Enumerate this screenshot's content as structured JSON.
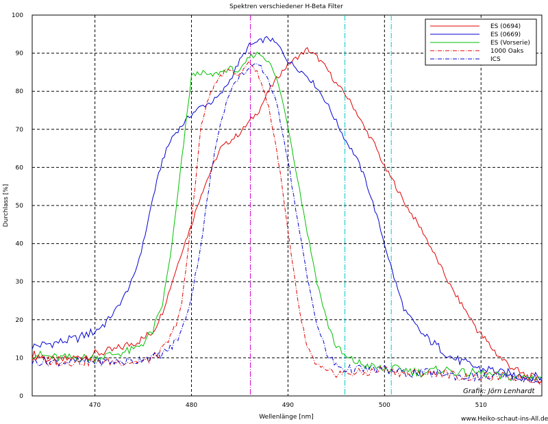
{
  "chart_data": {
    "type": "line",
    "title": "Spektren verschiedener H-Beta Filter",
    "xlabel": "Wellenlänge [nm]",
    "ylabel": "Durchlass [%]",
    "xlim": [
      463.5,
      516.3
    ],
    "ylim": [
      0,
      100
    ],
    "x_ticks": [
      470,
      480,
      490,
      500,
      510
    ],
    "y_ticks": [
      0,
      10,
      20,
      30,
      40,
      50,
      60,
      70,
      80,
      90,
      100
    ],
    "grid": true,
    "legend_position": "top-right",
    "series": [
      {
        "name": "ES (0694)",
        "color": "#e00000",
        "style": "solid",
        "x": [
          463.5,
          466,
          468,
          470,
          472,
          474,
          475,
          476,
          477,
          478,
          479,
          480,
          481,
          482,
          483,
          484,
          485,
          486,
          487,
          488,
          489,
          490,
          491,
          492,
          493,
          494,
          495,
          496,
          497,
          498,
          499,
          500,
          501,
          502,
          503,
          504,
          505,
          506,
          507,
          508,
          509,
          510,
          511,
          512,
          513,
          514,
          515,
          516.3
        ],
        "y": [
          11,
          9,
          10,
          11,
          12,
          14,
          15,
          17,
          22,
          30,
          38,
          45,
          53,
          59,
          65,
          67,
          69,
          72,
          75,
          80,
          84,
          87,
          89,
          91,
          89,
          86,
          82,
          79,
          75,
          70,
          66,
          60,
          56,
          51,
          47,
          43,
          38,
          33,
          28,
          24,
          20,
          16,
          13,
          10,
          8,
          6,
          5,
          4
        ]
      },
      {
        "name": "ES (0669)",
        "color": "#0000d0",
        "style": "solid",
        "x": [
          463.5,
          466,
          468,
          470,
          471,
          472,
          473,
          474,
          475,
          476,
          477,
          478,
          479,
          480,
          481,
          482,
          483,
          484,
          485,
          486,
          487,
          488,
          489,
          490,
          491,
          492,
          493,
          494,
          495,
          496,
          497,
          498,
          499,
          500,
          501,
          502,
          503,
          504,
          505,
          506,
          507,
          508,
          509,
          510,
          511,
          512,
          513,
          514,
          515,
          516.3
        ],
        "y": [
          13,
          14,
          15,
          17,
          19,
          22,
          26,
          31,
          40,
          52,
          62,
          68,
          71,
          74,
          76,
          77,
          79,
          83,
          88,
          92,
          93,
          94,
          92,
          88,
          86,
          84,
          81,
          77,
          72,
          67,
          63,
          57,
          49,
          40,
          31,
          23,
          19,
          16,
          14,
          12,
          10,
          9,
          8,
          7,
          7,
          6,
          6,
          5,
          5,
          5
        ]
      },
      {
        "name": "ES (Vorserie)",
        "color": "#00c000",
        "style": "solid",
        "x": [
          463.5,
          466,
          468,
          470,
          472,
          474,
          475,
          476,
          477,
          478,
          479,
          480,
          481,
          482,
          483,
          484,
          485,
          486,
          487,
          488,
          489,
          490,
          491,
          492,
          493,
          494,
          495,
          496,
          497,
          498,
          500,
          502,
          504,
          506,
          508,
          510,
          512,
          514,
          516.3
        ],
        "y": [
          11,
          10,
          10,
          10,
          11,
          12,
          14,
          17,
          24,
          40,
          62,
          84,
          85,
          84,
          85,
          86,
          85,
          89,
          90,
          88,
          82,
          71,
          57,
          43,
          30,
          20,
          13,
          10,
          9,
          8,
          7,
          7,
          6,
          7,
          6,
          6,
          5,
          5,
          5
        ]
      },
      {
        "name": "1000 Oaks",
        "color": "#e00000",
        "style": "dashdot",
        "x": [
          463.5,
          466,
          468,
          470,
          472,
          474,
          475,
          476,
          477,
          478,
          479,
          480,
          481,
          482,
          483,
          484,
          485,
          486,
          487,
          488,
          489,
          490,
          491,
          492,
          493,
          494,
          495,
          496,
          498,
          500,
          502,
          504,
          506,
          508,
          510,
          512,
          514,
          516.3
        ],
        "y": [
          10,
          9,
          9,
          9,
          9,
          9,
          9,
          10,
          12,
          16,
          24,
          46,
          71,
          80,
          84,
          86,
          84,
          88,
          84,
          76,
          62,
          43,
          25,
          12,
          8,
          6,
          6,
          6,
          6,
          7,
          6,
          6,
          6,
          5,
          5,
          5,
          5,
          4
        ]
      },
      {
        "name": "ICS",
        "color": "#0000d0",
        "style": "dashdot",
        "x": [
          463.5,
          466,
          468,
          470,
          472,
          474,
          475,
          476,
          477,
          478,
          479,
          480,
          481,
          482,
          483,
          484,
          485,
          486,
          487,
          488,
          489,
          490,
          491,
          492,
          493,
          494,
          495,
          496,
          497,
          498,
          500,
          502,
          504,
          506,
          508,
          510,
          512,
          514,
          516.3
        ],
        "y": [
          9,
          9,
          9,
          9,
          9,
          9,
          10,
          10,
          11,
          13,
          17,
          26,
          40,
          58,
          72,
          80,
          84,
          86,
          87,
          83,
          75,
          62,
          46,
          31,
          19,
          11,
          8,
          7,
          7,
          7,
          7,
          6,
          6,
          6,
          5,
          5,
          5,
          5,
          4
        ]
      }
    ],
    "reference_lines": [
      {
        "x": 486.1,
        "color": "#d000d0"
      },
      {
        "x": 495.9,
        "color": "#00c8c8"
      },
      {
        "x": 500.7,
        "color": "#00c8c8"
      }
    ],
    "annotations": {
      "credit": "Grafik: Jörn Lenhardt",
      "website": "www.Heiko-schaut-ins-All.de"
    }
  }
}
